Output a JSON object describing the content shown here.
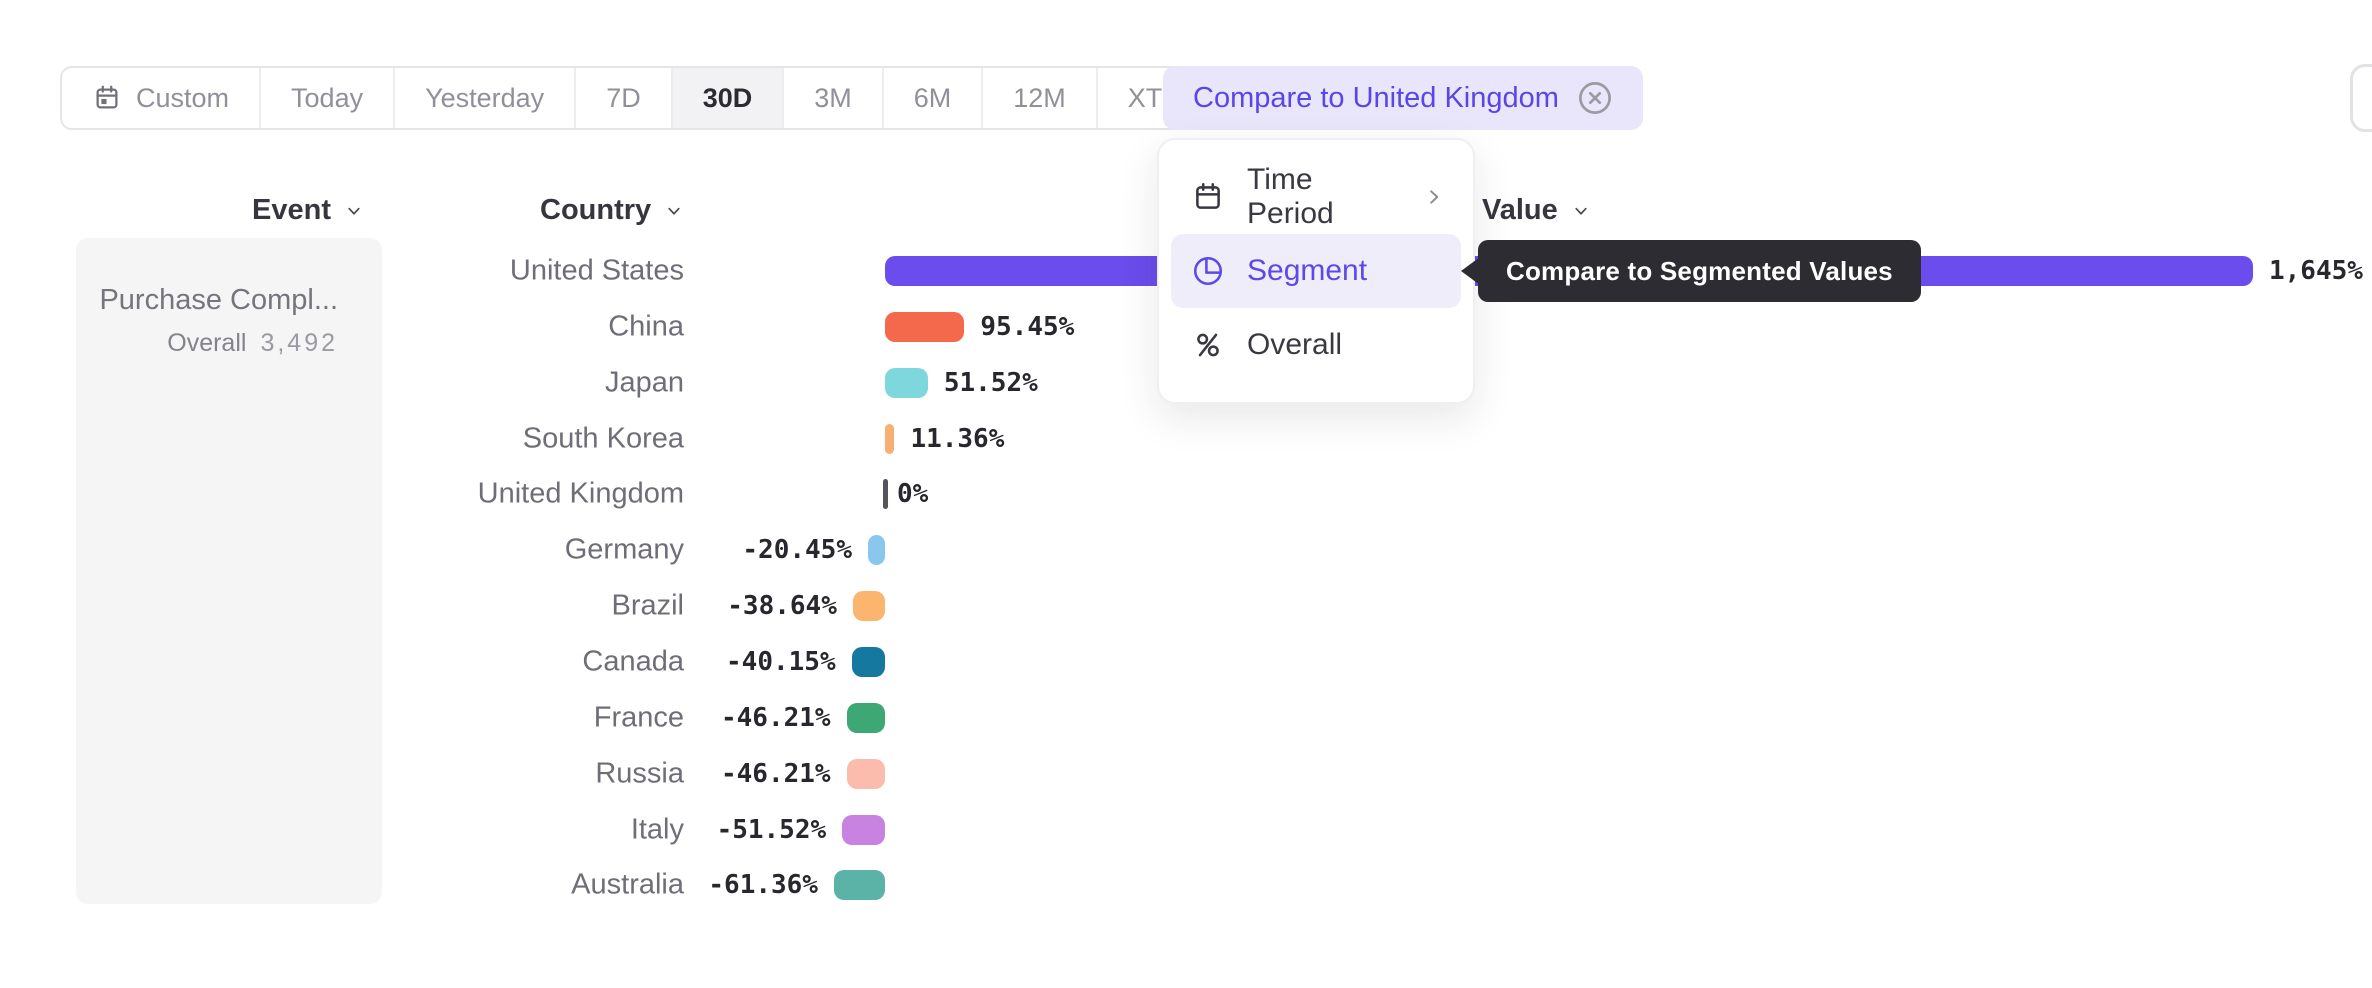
{
  "toolbar": {
    "ranges": [
      {
        "label": "Custom",
        "icon": "calendar-custom",
        "selected": false
      },
      {
        "label": "Today",
        "selected": false
      },
      {
        "label": "Yesterday",
        "selected": false
      },
      {
        "label": "7D",
        "selected": false
      },
      {
        "label": "30D",
        "selected": true
      },
      {
        "label": "3M",
        "selected": false
      },
      {
        "label": "6M",
        "selected": false
      },
      {
        "label": "12M",
        "selected": false
      },
      {
        "label": "XTD",
        "trailing_icon": "chevron-down",
        "selected": false
      }
    ],
    "compare_chip": {
      "label": "Compare to United Kingdom",
      "icon": "close-circle"
    }
  },
  "columns": {
    "event": "Event",
    "country": "Country",
    "value": "Value"
  },
  "event_panel": {
    "title": "Purchase Compl...",
    "overall_label": "Overall",
    "overall_value": "3,492"
  },
  "menu": {
    "items": [
      {
        "label": "Time Period",
        "icon": "calendar",
        "trailing": "chevron-right",
        "selected": false
      },
      {
        "label": "Segment",
        "icon": "segment",
        "selected": true
      },
      {
        "label": "Overall",
        "icon": "percent",
        "selected": false
      }
    ]
  },
  "tooltip": {
    "text": "Compare to Segmented Values"
  },
  "chart_data": {
    "type": "bar",
    "orientation": "horizontal",
    "title": "",
    "xlabel": "Value",
    "ylabel": "Country",
    "unit": "%",
    "baseline": 0,
    "xlim": [
      -100,
      1700
    ],
    "grid": false,
    "legend": false,
    "categories": [
      "United States",
      "China",
      "Japan",
      "South Korea",
      "United Kingdom",
      "Germany",
      "Brazil",
      "Canada",
      "France",
      "Russia",
      "Italy",
      "Australia"
    ],
    "values": [
      1645,
      95.45,
      51.52,
      11.36,
      0,
      -20.45,
      -38.64,
      -40.15,
      -46.21,
      -46.21,
      -51.52,
      -61.36
    ],
    "value_labels": [
      "1,645%",
      "95.45%",
      "51.52%",
      "11.36%",
      "0%",
      "-20.45%",
      "-38.64%",
      "-40.15%",
      "-46.21%",
      "-46.21%",
      "-51.52%",
      "-61.36%"
    ],
    "bar_colors": [
      "#6B4CEC",
      "#F4694B",
      "#7DD7DC",
      "#F8AF72",
      "#55535B",
      "#8AC6EE",
      "#FBB56E",
      "#14789F",
      "#3EA874",
      "#FBBCAD",
      "#C883E0",
      "#5BB3A8"
    ]
  },
  "colors": {
    "accent": "#5B49E8",
    "chip_bg": "#E9E6FB",
    "chip_text": "#5846E6",
    "tooltip_bg": "#2D2C33",
    "panel_bg": "#F5F5F6",
    "selected_range_bg": "#F2F2F4",
    "baseline_tick": "#55535B"
  }
}
